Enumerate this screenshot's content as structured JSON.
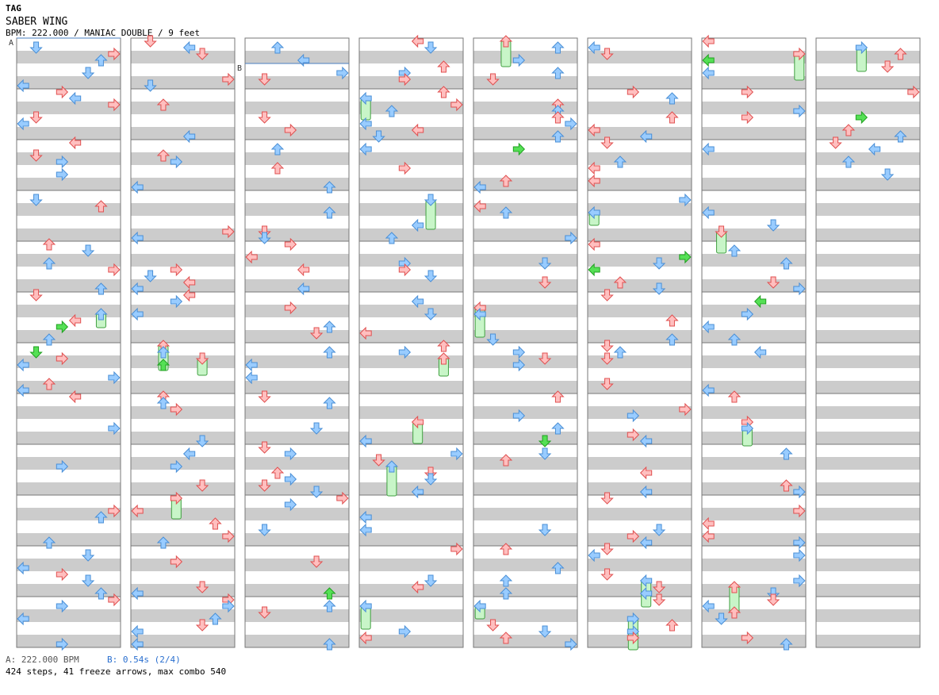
{
  "song": {
    "artist": "TAG",
    "title": "SABER WING",
    "bpm_label": "BPM:",
    "bpm": "222.000",
    "difficulty": "MANIAC DOUBLE",
    "feet": "9 feet",
    "meta_line": "BPM: 222.000 / MANIAC DOUBLE / 9 feet"
  },
  "markers": [
    {
      "label": "A",
      "column": 1,
      "color": "#4a90e2"
    },
    {
      "label": "B",
      "column": 3,
      "color": "#4a90e2"
    }
  ],
  "footer": {
    "bpm_note": "A: 222.000 BPM",
    "stop_note": "B: 0.54s (2/4)",
    "summary": "424 steps, 41 freeze arrows, max combo 540"
  },
  "colors": {
    "red_fill": "#ffbfbf",
    "red_stroke": "#e05050",
    "blue_fill": "#99ccff",
    "blue_stroke": "#4a8fd6",
    "green_fill": "#55e055",
    "green_stroke": "#20a020",
    "freeze_fill": "#c8f5c8",
    "freeze_stroke": "#40a040",
    "stripe_gray": "#cccccc",
    "border": "#777777",
    "marker_line": "#4a7fc0",
    "footer_blue": "#2a6fcf"
  },
  "chart_data": {
    "type": "step-chart",
    "columns": 8,
    "measures_per_column": 12,
    "lanes": [
      "P1-left",
      "P1-down",
      "P1-up",
      "P1-right",
      "P2-left",
      "P2-down",
      "P2-up",
      "P2-right"
    ],
    "total_steps": 424,
    "freeze_arrows": 41,
    "max_combo": 540,
    "seed": 7
  }
}
